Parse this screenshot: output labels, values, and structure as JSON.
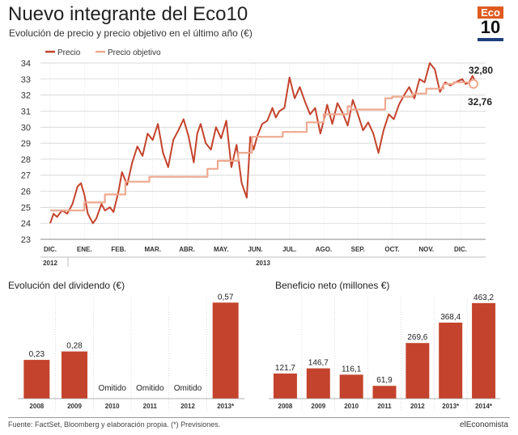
{
  "header": {
    "title": "Nuevo integrante del Eco10",
    "subtitle": "Evolución de precio y precio objetivo en el último año (€)",
    "logo_top": "Eco",
    "logo_bottom": "10"
  },
  "footer": {
    "source": "Fuente: FactSet, Bloomberg y elaboración propia. (*) Previsiones.",
    "brand": "elEconomista"
  },
  "colors": {
    "precio": "#c4432c",
    "objetivo": "#eea98f",
    "bar": "#c4432c",
    "grid": "#cccccc"
  },
  "chart_data": [
    {
      "type": "line",
      "title": "Evolución de precio y precio objetivo en el último año (€)",
      "ylim": [
        23,
        34
      ],
      "yticks": [
        23,
        24,
        25,
        26,
        27,
        28,
        29,
        30,
        31,
        32,
        33,
        34
      ],
      "x_labels": [
        "DIC.",
        "ENE.",
        "FEB.",
        "MAR.",
        "ABR.",
        "MAY.",
        "JUN.",
        "JUL.",
        "AGO.",
        "SEP.",
        "OCT.",
        "NOV.",
        "DIC."
      ],
      "year_labels": [
        "2012",
        "2013"
      ],
      "legend": "top-left",
      "series": [
        {
          "name": "Precio",
          "x": [
            0,
            0.1,
            0.2,
            0.35,
            0.5,
            0.65,
            0.8,
            0.9,
            1.0,
            1.1,
            1.25,
            1.35,
            1.5,
            1.6,
            1.75,
            1.85,
            2.0,
            2.1,
            2.25,
            2.4,
            2.55,
            2.7,
            2.85,
            3.0,
            3.15,
            3.3,
            3.45,
            3.6,
            3.75,
            3.9,
            4.05,
            4.2,
            4.3,
            4.4,
            4.55,
            4.7,
            4.85,
            5.0,
            5.15,
            5.3,
            5.45,
            5.6,
            5.75,
            5.85,
            5.95,
            6.05,
            6.2,
            6.35,
            6.5,
            6.6,
            6.7,
            6.85,
            7.0,
            7.15,
            7.3,
            7.45,
            7.6,
            7.75,
            7.9,
            8.0,
            8.1,
            8.25,
            8.4,
            8.55,
            8.7,
            8.85,
            9.0,
            9.15,
            9.3,
            9.45,
            9.6,
            9.75,
            9.9,
            10.05,
            10.2,
            10.35,
            10.5,
            10.65,
            10.8,
            10.95,
            11.1,
            11.25,
            11.4,
            11.55,
            11.7,
            11.85,
            11.95,
            12.05,
            12.15,
            12.25,
            12.35,
            12.45
          ],
          "values": [
            24.0,
            24.6,
            24.4,
            24.8,
            24.6,
            25.2,
            26.3,
            26.5,
            25.8,
            24.6,
            24.0,
            24.3,
            25.2,
            24.8,
            25.0,
            24.7,
            26.0,
            27.2,
            26.4,
            27.8,
            28.8,
            28.2,
            29.6,
            29.2,
            30.2,
            28.4,
            27.5,
            29.2,
            29.8,
            30.5,
            29.4,
            27.8,
            29.6,
            30.2,
            29.0,
            28.6,
            30.0,
            29.3,
            30.4,
            27.5,
            28.9,
            26.5,
            25.6,
            29.4,
            28.6,
            29.4,
            30.2,
            30.4,
            31.2,
            30.6,
            31.0,
            31.2,
            33.1,
            31.8,
            32.5,
            31.6,
            30.8,
            31.2,
            29.6,
            30.4,
            31.4,
            30.2,
            31.5,
            30.9,
            30.1,
            31.7,
            30.8,
            29.8,
            30.3,
            29.6,
            28.4,
            29.8,
            30.8,
            30.5,
            31.4,
            32.0,
            32.5,
            31.8,
            33.0,
            32.8,
            34.0,
            33.6,
            32.2,
            32.8,
            32.6,
            32.8,
            32.9,
            33.0,
            32.7,
            32.8,
            33.2,
            32.76
          ]
        },
        {
          "name": "Precio objetivo",
          "x": [
            0,
            1.0,
            1.0,
            1.6,
            1.6,
            2.2,
            2.2,
            2.9,
            2.9,
            3.5,
            3.5,
            4.6,
            4.6,
            4.9,
            4.9,
            5.5,
            5.5,
            5.9,
            5.9,
            6.8,
            6.8,
            7.5,
            7.5,
            8.0,
            8.0,
            8.7,
            8.7,
            8.8,
            8.8,
            9.8,
            9.8,
            10.0,
            10.0,
            10.6,
            10.6,
            11.0,
            11.0,
            11.5,
            11.5,
            11.8,
            11.8,
            12.45
          ],
          "values": [
            24.8,
            24.8,
            25.3,
            25.3,
            25.8,
            25.8,
            26.6,
            26.6,
            26.9,
            26.9,
            26.9,
            26.9,
            27.4,
            27.4,
            27.9,
            27.9,
            28.4,
            28.4,
            29.4,
            29.4,
            29.7,
            29.7,
            30.3,
            30.3,
            30.8,
            30.8,
            31.3,
            31.3,
            31.1,
            31.1,
            31.8,
            31.8,
            31.9,
            31.9,
            32.1,
            32.1,
            32.4,
            32.4,
            32.7,
            32.7,
            32.8,
            32.8
          ]
        }
      ],
      "annotations": [
        "32,80",
        "32,76"
      ]
    },
    {
      "type": "bar",
      "title": "Evolución del dividendo (€)",
      "categories": [
        "2008",
        "2009",
        "2010",
        "2011",
        "2012",
        "2013*"
      ],
      "values": [
        0.23,
        0.28,
        null,
        null,
        null,
        0.57
      ],
      "value_labels": [
        "0,23",
        "0,28",
        "Omitido",
        "Omitido",
        "Omitido",
        "0,57"
      ],
      "ylim": [
        0,
        0.6
      ]
    },
    {
      "type": "bar",
      "title": "Beneficio neto (millones €)",
      "categories": [
        "2008",
        "2009",
        "2010",
        "2011",
        "2012",
        "2013*",
        "2014*"
      ],
      "values": [
        121.7,
        146.7,
        116.1,
        61.9,
        269.6,
        368.4,
        463.2
      ],
      "value_labels": [
        "121,7",
        "146,7",
        "116,1",
        "61,9",
        "269,6",
        "368,4",
        "463,2"
      ],
      "ylim": [
        0,
        490
      ]
    }
  ]
}
